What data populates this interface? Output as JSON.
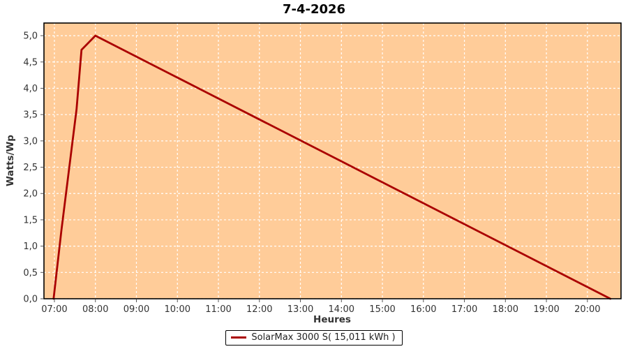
{
  "chart_data": {
    "type": "line",
    "title": "7-4-2026",
    "xlabel": "Heures",
    "ylabel": "Watts/Wp",
    "x_domain": [
      6.745,
      20.82
    ],
    "y_domain": [
      0,
      5.24
    ],
    "grid": true,
    "legend_position": "bottom",
    "x_ticks": [
      {
        "v": 7,
        "label": "07:00"
      },
      {
        "v": 8,
        "label": "08:00"
      },
      {
        "v": 9,
        "label": "09:00"
      },
      {
        "v": 10,
        "label": "10:00"
      },
      {
        "v": 11,
        "label": "11:00"
      },
      {
        "v": 12,
        "label": "12:00"
      },
      {
        "v": 13,
        "label": "13:00"
      },
      {
        "v": 14,
        "label": "14:00"
      },
      {
        "v": 15,
        "label": "15:00"
      },
      {
        "v": 16,
        "label": "16:00"
      },
      {
        "v": 17,
        "label": "17:00"
      },
      {
        "v": 18,
        "label": "18:00"
      },
      {
        "v": 19,
        "label": "19:00"
      },
      {
        "v": 20,
        "label": "20:00"
      }
    ],
    "y_ticks": [
      {
        "v": 0.0,
        "label": "0,0"
      },
      {
        "v": 0.5,
        "label": "0,5"
      },
      {
        "v": 1.0,
        "label": "1,0"
      },
      {
        "v": 1.5,
        "label": "1,5"
      },
      {
        "v": 2.0,
        "label": "2,0"
      },
      {
        "v": 2.5,
        "label": "2,5"
      },
      {
        "v": 3.0,
        "label": "3,0"
      },
      {
        "v": 3.5,
        "label": "3,5"
      },
      {
        "v": 4.0,
        "label": "4,0"
      },
      {
        "v": 4.5,
        "label": "4,5"
      },
      {
        "v": 5.0,
        "label": "5,0"
      }
    ],
    "series": [
      {
        "name": "SolarMax 3000 S( 15,011 kWh )",
        "color": "#aa0000",
        "points": [
          [
            6.98,
            0.0
          ],
          [
            7.17,
            1.3
          ],
          [
            7.54,
            3.6
          ],
          [
            7.66,
            4.73
          ],
          [
            8.0,
            5.0
          ],
          [
            20.56,
            0.0
          ]
        ]
      }
    ],
    "colors": {
      "plot_background": "#ffcc99",
      "grid": "#ffffff",
      "axis": "#000000",
      "tick": "#555555",
      "tick_label": "#333333"
    }
  }
}
